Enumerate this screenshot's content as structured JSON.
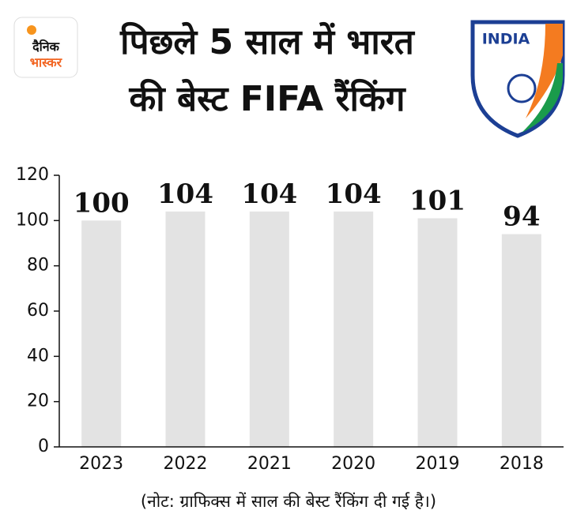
{
  "logo_text": [
    "दैनिक",
    "भास्कर"
  ],
  "badge_text": "INDIA",
  "chart_data": {
    "type": "bar",
    "title": [
      "पिछले 5 साल में भारत",
      "की बेस्ट FIFA रैंकिंग"
    ],
    "categories": [
      "2023",
      "2022",
      "2021",
      "2020",
      "2019",
      "2018"
    ],
    "values": [
      100,
      104,
      104,
      104,
      101,
      94
    ],
    "color": "#e3e3e3",
    "ylim": [
      0,
      120
    ],
    "yticks": [
      0,
      20,
      40,
      60,
      80,
      100,
      120
    ],
    "note": "(नोट: ग्राफिक्स में साल की बेस्ट रैंकिंग दी गई है।)"
  }
}
